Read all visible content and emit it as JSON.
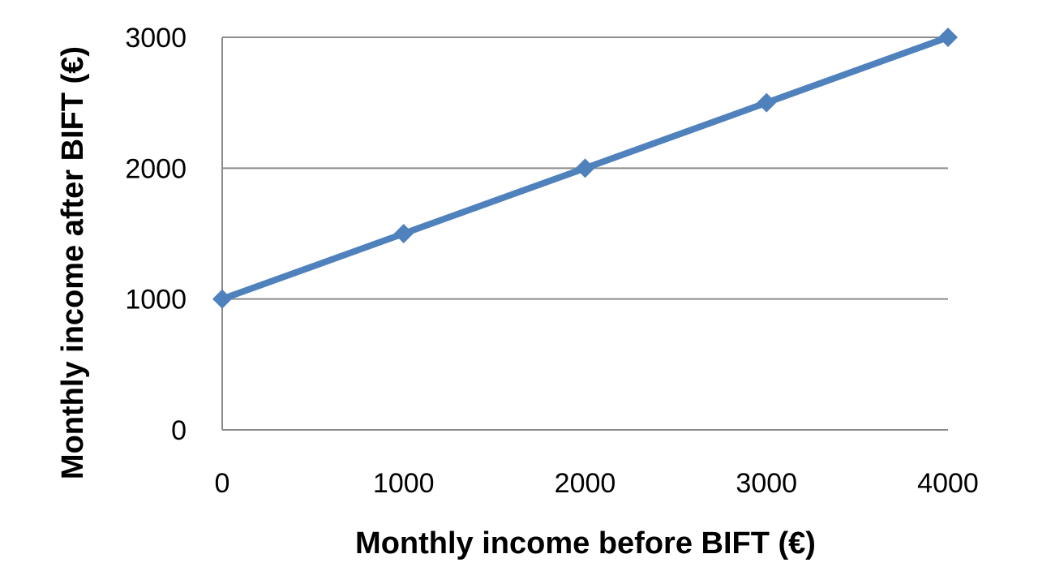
{
  "chart_data": {
    "type": "line",
    "title": "",
    "xlabel": "Monthly income before BIFT (€)",
    "ylabel": "Monthly income after BIFT (€)",
    "x": [
      0,
      1000,
      2000,
      3000,
      4000
    ],
    "series": [
      {
        "values": [
          1000,
          1500,
          2000,
          2500,
          3000
        ],
        "color": "#4F81BD",
        "marker": "diamond"
      }
    ],
    "xlim": [
      0,
      4000
    ],
    "ylim": [
      0,
      3000
    ],
    "xticks": [
      "0",
      "1000",
      "2000",
      "3000",
      "4000"
    ],
    "yticks": [
      "0",
      "1000",
      "2000",
      "3000"
    ],
    "grid": "horizontal",
    "legend": "none"
  }
}
